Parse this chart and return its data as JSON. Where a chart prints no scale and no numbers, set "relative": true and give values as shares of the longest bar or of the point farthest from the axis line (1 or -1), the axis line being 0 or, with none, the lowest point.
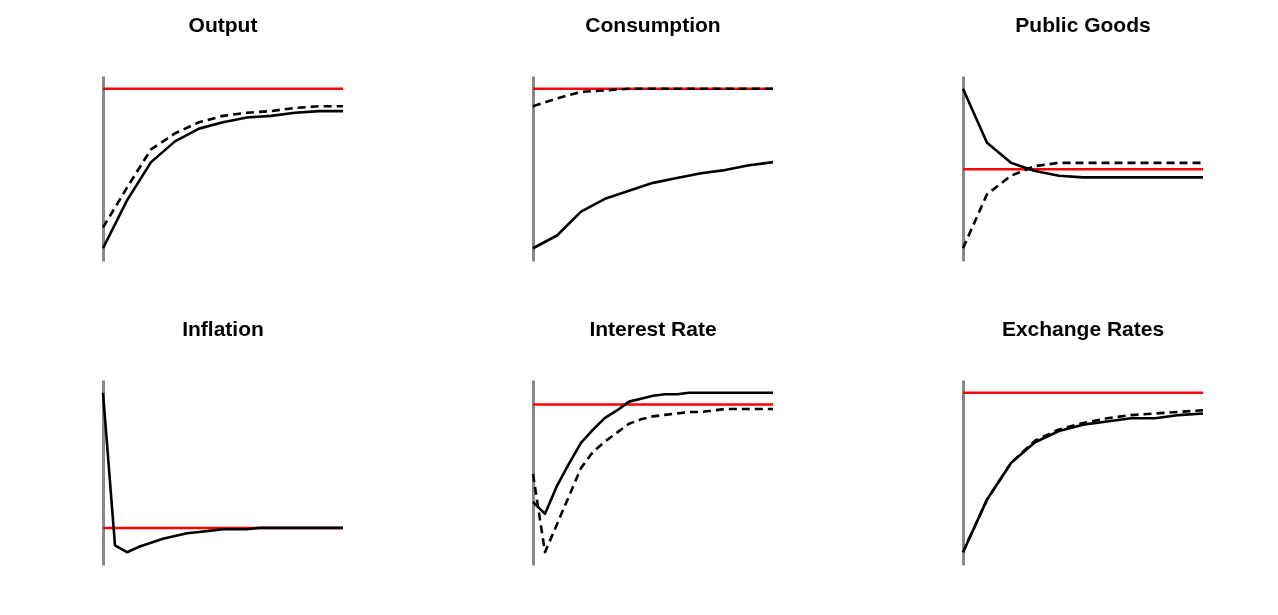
{
  "chart_data": [
    {
      "type": "line",
      "title": "Output",
      "relative": true,
      "categories": [
        null,
        null,
        null,
        null,
        null,
        null,
        null,
        null,
        null,
        null,
        null
      ],
      "series": [
        {
          "color": "#000000",
          "line_style": "solid",
          "values": [
            -1,
            -0.7,
            -0.46,
            -0.33,
            -0.25,
            -0.21,
            -0.18,
            -0.17,
            -0.15,
            -0.14,
            -0.14
          ]
        },
        {
          "color": "#000000",
          "line_style": "dashed",
          "values": [
            -0.87,
            -0.62,
            -0.38,
            -0.28,
            -0.21,
            -0.17,
            -0.15,
            -0.14,
            -0.12,
            -0.11,
            -0.11
          ]
        }
      ],
      "ref_lines": [
        {
          "axis": "y",
          "value": 0,
          "color": "#ff0000"
        }
      ]
    },
    {
      "type": "line",
      "title": "Consumption",
      "relative": true,
      "categories": [
        null,
        null,
        null,
        null,
        null,
        null,
        null,
        null,
        null,
        null,
        null
      ],
      "series": [
        {
          "color": "#000000",
          "line_style": "solid",
          "values": [
            -1,
            -0.92,
            -0.77,
            -0.69,
            -0.64,
            -0.59,
            -0.56,
            -0.53,
            -0.51,
            -0.48,
            -0.46
          ]
        },
        {
          "color": "#000000",
          "line_style": "dashed",
          "values": [
            -0.11,
            -0.06,
            -0.02,
            -0.01,
            0,
            0,
            0,
            0,
            0,
            0,
            0
          ]
        }
      ],
      "ref_lines": [
        {
          "axis": "y",
          "value": 0,
          "color": "#ff0000"
        }
      ]
    },
    {
      "type": "line",
      "title": "Public Goods",
      "relative": true,
      "categories": [
        null,
        null,
        null,
        null,
        null,
        null,
        null,
        null,
        null,
        null,
        null
      ],
      "series": [
        {
          "color": "#000000",
          "line_style": "solid",
          "values": [
            1,
            0.33,
            0.08,
            -0.02,
            -0.08,
            -0.1,
            -0.1,
            -0.1,
            -0.1,
            -0.1,
            -0.1
          ]
        },
        {
          "color": "#000000",
          "line_style": "dashed",
          "values": [
            -0.98,
            -0.31,
            -0.08,
            0.04,
            0.08,
            0.08,
            0.08,
            0.08,
            0.08,
            0.08,
            0.08
          ]
        }
      ],
      "ref_lines": [
        {
          "axis": "y",
          "value": 0,
          "color": "#ff0000"
        }
      ]
    },
    {
      "type": "line",
      "title": "Inflation",
      "relative": true,
      "categories": [
        null,
        null,
        null,
        null,
        null,
        null,
        null,
        null,
        null,
        null,
        null,
        null,
        null,
        null,
        null,
        null,
        null,
        null,
        null,
        null,
        null
      ],
      "series": [
        {
          "color": "#000000",
          "line_style": "solid",
          "values": [
            1,
            -0.13,
            -0.18,
            -0.14,
            -0.11,
            -0.08,
            -0.06,
            -0.04,
            -0.03,
            -0.02,
            -0.01,
            -0.01,
            -0.01,
            0,
            0,
            0,
            0,
            0,
            0,
            0,
            0
          ]
        }
      ],
      "ref_lines": [
        {
          "axis": "y",
          "value": 0,
          "color": "#ff0000"
        }
      ]
    },
    {
      "type": "line",
      "title": "Interest Rate",
      "relative": true,
      "categories": [
        null,
        null,
        null,
        null,
        null,
        null,
        null,
        null,
        null,
        null,
        null,
        null,
        null,
        null,
        null,
        null,
        null,
        null,
        null,
        null,
        null
      ],
      "series": [
        {
          "color": "#000000",
          "line_style": "solid",
          "values": [
            -0.66,
            -0.74,
            -0.55,
            -0.4,
            -0.26,
            -0.17,
            -0.09,
            -0.04,
            0.02,
            0.04,
            0.06,
            0.07,
            0.07,
            0.08,
            0.08,
            0.08,
            0.08,
            0.08,
            0.08,
            0.08,
            0.08
          ]
        },
        {
          "color": "#000000",
          "line_style": "dashed",
          "values": [
            -0.47,
            -1,
            -0.81,
            -0.62,
            -0.43,
            -0.32,
            -0.25,
            -0.19,
            -0.13,
            -0.1,
            -0.08,
            -0.07,
            -0.06,
            -0.05,
            -0.05,
            -0.04,
            -0.03,
            -0.03,
            -0.03,
            -0.03,
            -0.03
          ]
        }
      ],
      "ref_lines": [
        {
          "axis": "y",
          "value": 0,
          "color": "#ff0000"
        }
      ]
    },
    {
      "type": "line",
      "title": "Exchange Rates",
      "relative": true,
      "categories": [
        null,
        null,
        null,
        null,
        null,
        null,
        null,
        null,
        null,
        null,
        null
      ],
      "series": [
        {
          "color": "#000000",
          "line_style": "solid",
          "values": [
            -1,
            -0.67,
            -0.44,
            -0.31,
            -0.24,
            -0.2,
            -0.18,
            -0.16,
            -0.16,
            -0.14,
            -0.13
          ]
        },
        {
          "color": "#000000",
          "line_style": "dashed",
          "values": [
            -1,
            -0.67,
            -0.44,
            -0.3,
            -0.23,
            -0.19,
            -0.16,
            -0.14,
            -0.13,
            -0.12,
            -0.11
          ]
        }
      ],
      "ref_lines": [
        {
          "axis": "y",
          "value": 0,
          "color": "#ff0000"
        }
      ]
    }
  ]
}
